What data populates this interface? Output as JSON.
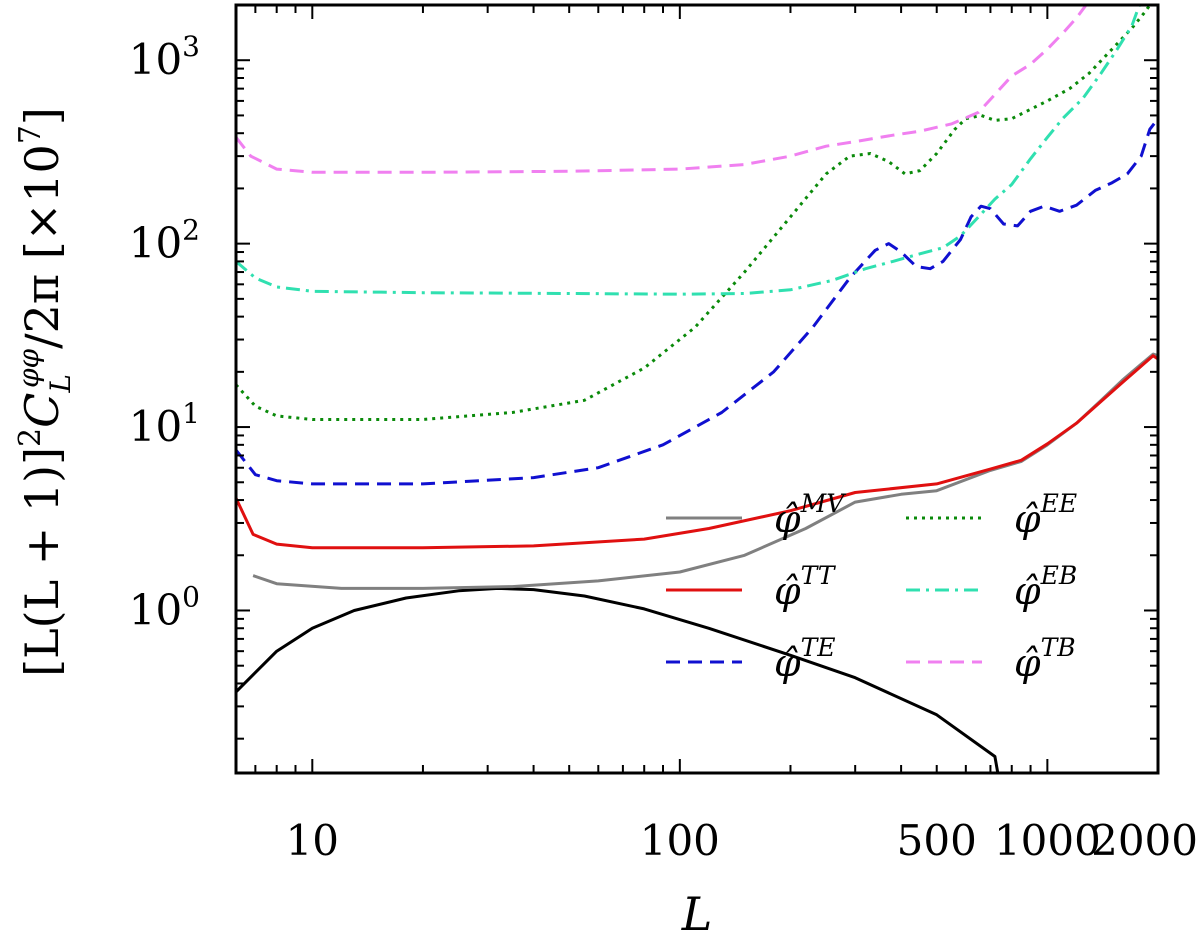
{
  "chart_data": {
    "type": "line",
    "xscale": "log",
    "yscale": "log",
    "xlabel": "L",
    "ylabel": "[L(L+1)]²C_L^{φφ}/2π [×10⁷]",
    "ylabel_parts": {
      "main": "[L(L + 1)]",
      "sq": "2",
      "c": "C",
      "c_sub": "L",
      "c_sup": "φφ",
      "tail": "/2π  [×10",
      "exp": "7",
      "close": "]"
    },
    "xlim": [
      6.2,
      2000
    ],
    "ylim": [
      0.13,
      2000
    ],
    "x_ticks": [
      {
        "value": 10,
        "label": "10"
      },
      {
        "value": 100,
        "label": "100"
      },
      {
        "value": 500,
        "label": "500"
      },
      {
        "value": 1000,
        "label": "1000"
      },
      {
        "value": 2000,
        "label": "2000"
      }
    ],
    "y_ticks": [
      {
        "value": 1,
        "base": "10",
        "exp": "0"
      },
      {
        "value": 10,
        "base": "10",
        "exp": "1"
      },
      {
        "value": 100,
        "base": "10",
        "exp": "2"
      },
      {
        "value": 1000,
        "base": "10",
        "exp": "3"
      }
    ],
    "legend_position": "lower-right",
    "series": [
      {
        "name": "signal",
        "label": "",
        "base": "",
        "sup": "",
        "color": "#000000",
        "dash": "",
        "in_legend": false,
        "points": [
          [
            6.2,
            0.36
          ],
          [
            8,
            0.6
          ],
          [
            10,
            0.8
          ],
          [
            13,
            1.0
          ],
          [
            18,
            1.17
          ],
          [
            25,
            1.28
          ],
          [
            32,
            1.32
          ],
          [
            40,
            1.3
          ],
          [
            55,
            1.2
          ],
          [
            80,
            1.02
          ],
          [
            120,
            0.8
          ],
          [
            200,
            0.57
          ],
          [
            300,
            0.43
          ],
          [
            500,
            0.27
          ],
          [
            720,
            0.16
          ],
          [
            733,
            0.13
          ]
        ]
      },
      {
        "name": "phi-MV",
        "label": "φ̂ MV",
        "base": "φ̂",
        "sup": "MV",
        "color": "#808080",
        "dash": "",
        "in_legend": true,
        "points": [
          [
            6.9,
            1.55
          ],
          [
            8,
            1.4
          ],
          [
            12,
            1.32
          ],
          [
            20,
            1.32
          ],
          [
            35,
            1.35
          ],
          [
            60,
            1.45
          ],
          [
            100,
            1.62
          ],
          [
            150,
            2.0
          ],
          [
            220,
            2.8
          ],
          [
            300,
            3.9
          ],
          [
            400,
            4.3
          ],
          [
            500,
            4.5
          ],
          [
            700,
            5.8
          ],
          [
            850,
            6.5
          ],
          [
            1000,
            8.0
          ],
          [
            1200,
            10.5
          ],
          [
            1400,
            14
          ],
          [
            1600,
            18
          ],
          [
            1800,
            22
          ],
          [
            1940,
            25
          ],
          [
            2000,
            24.5
          ]
        ]
      },
      {
        "name": "phi-TT",
        "label": "φ̂ TT",
        "base": "φ̂",
        "sup": "TT",
        "color": "#e01010",
        "dash": "",
        "in_legend": true,
        "points": [
          [
            6.2,
            4.1
          ],
          [
            6.9,
            2.6
          ],
          [
            8,
            2.3
          ],
          [
            10,
            2.2
          ],
          [
            20,
            2.2
          ],
          [
            40,
            2.25
          ],
          [
            80,
            2.45
          ],
          [
            120,
            2.8
          ],
          [
            200,
            3.5
          ],
          [
            300,
            4.4
          ],
          [
            500,
            4.9
          ],
          [
            700,
            5.9
          ],
          [
            850,
            6.6
          ],
          [
            1000,
            8.1
          ],
          [
            1200,
            10.5
          ],
          [
            1400,
            13.8
          ],
          [
            1600,
            17.5
          ],
          [
            1800,
            21.5
          ],
          [
            1940,
            24.5
          ],
          [
            2000,
            23.5
          ]
        ]
      },
      {
        "name": "phi-TE",
        "label": "φ̂ TE",
        "base": "φ̂",
        "sup": "TE",
        "color": "#1010d0",
        "dash": "14,8",
        "in_legend": true,
        "points": [
          [
            6.2,
            7.5
          ],
          [
            7,
            5.5
          ],
          [
            8,
            5.1
          ],
          [
            10,
            4.9
          ],
          [
            20,
            4.9
          ],
          [
            40,
            5.3
          ],
          [
            60,
            6.0
          ],
          [
            90,
            8.0
          ],
          [
            130,
            12
          ],
          [
            180,
            20
          ],
          [
            230,
            35
          ],
          [
            290,
            65
          ],
          [
            340,
            92
          ],
          [
            370,
            100
          ],
          [
            400,
            90
          ],
          [
            440,
            75
          ],
          [
            480,
            73
          ],
          [
            520,
            80
          ],
          [
            580,
            105
          ],
          [
            620,
            140
          ],
          [
            660,
            160
          ],
          [
            700,
            155
          ],
          [
            760,
            128
          ],
          [
            830,
            125
          ],
          [
            900,
            150
          ],
          [
            980,
            160
          ],
          [
            1080,
            150
          ],
          [
            1200,
            162
          ],
          [
            1350,
            195
          ],
          [
            1500,
            215
          ],
          [
            1650,
            240
          ],
          [
            1800,
            300
          ],
          [
            1900,
            420
          ],
          [
            2000,
            480
          ]
        ]
      },
      {
        "name": "phi-EE",
        "label": "φ̂ EE",
        "base": "φ̂",
        "sup": "EE",
        "color": "#0a8a0a",
        "dash": "3,5",
        "in_legend": true,
        "points": [
          [
            6.2,
            17
          ],
          [
            7,
            13
          ],
          [
            8,
            11.5
          ],
          [
            10,
            11
          ],
          [
            20,
            11
          ],
          [
            35,
            12
          ],
          [
            55,
            14
          ],
          [
            80,
            21
          ],
          [
            110,
            35
          ],
          [
            150,
            70
          ],
          [
            200,
            140
          ],
          [
            250,
            240
          ],
          [
            290,
            300
          ],
          [
            330,
            310
          ],
          [
            370,
            280
          ],
          [
            410,
            240
          ],
          [
            450,
            250
          ],
          [
            500,
            310
          ],
          [
            560,
            420
          ],
          [
            600,
            480
          ],
          [
            660,
            500
          ],
          [
            720,
            470
          ],
          [
            800,
            480
          ],
          [
            900,
            540
          ],
          [
            1000,
            600
          ],
          [
            1150,
            700
          ],
          [
            1300,
            850
          ],
          [
            1500,
            1150
          ],
          [
            1700,
            1500
          ],
          [
            1850,
            1850
          ],
          [
            1900,
            2000
          ]
        ]
      },
      {
        "name": "phi-EB",
        "label": "φ̂ EB",
        "base": "φ̂",
        "sup": "EB",
        "color": "#30e0b0",
        "dash": "14,6,3,6",
        "in_legend": true,
        "points": [
          [
            6.2,
            80
          ],
          [
            7,
            65
          ],
          [
            8,
            58
          ],
          [
            10,
            55
          ],
          [
            20,
            54
          ],
          [
            50,
            53.5
          ],
          [
            100,
            53
          ],
          [
            150,
            53.5
          ],
          [
            200,
            56
          ],
          [
            260,
            63
          ],
          [
            320,
            73
          ],
          [
            380,
            80
          ],
          [
            450,
            88
          ],
          [
            520,
            95
          ],
          [
            580,
            110
          ],
          [
            650,
            140
          ],
          [
            720,
            175
          ],
          [
            800,
            210
          ],
          [
            900,
            290
          ],
          [
            1000,
            380
          ],
          [
            1100,
            480
          ],
          [
            1250,
            620
          ],
          [
            1400,
            850
          ],
          [
            1550,
            1150
          ],
          [
            1700,
            1550
          ],
          [
            1780,
            2000
          ]
        ]
      },
      {
        "name": "phi-TB",
        "label": "φ̂ TB",
        "base": "φ̂",
        "sup": "TB",
        "color": "#f080f0",
        "dash": "14,8",
        "in_legend": true,
        "points": [
          [
            6.2,
            380
          ],
          [
            6.8,
            300
          ],
          [
            8,
            255
          ],
          [
            10,
            245
          ],
          [
            20,
            245
          ],
          [
            50,
            248
          ],
          [
            100,
            255
          ],
          [
            150,
            270
          ],
          [
            200,
            300
          ],
          [
            250,
            340
          ],
          [
            300,
            360
          ],
          [
            380,
            390
          ],
          [
            450,
            410
          ],
          [
            550,
            450
          ],
          [
            650,
            520
          ],
          [
            720,
            650
          ],
          [
            800,
            820
          ],
          [
            900,
            950
          ],
          [
            1000,
            1150
          ],
          [
            1100,
            1400
          ],
          [
            1200,
            1700
          ],
          [
            1270,
            1980
          ]
        ]
      }
    ]
  }
}
